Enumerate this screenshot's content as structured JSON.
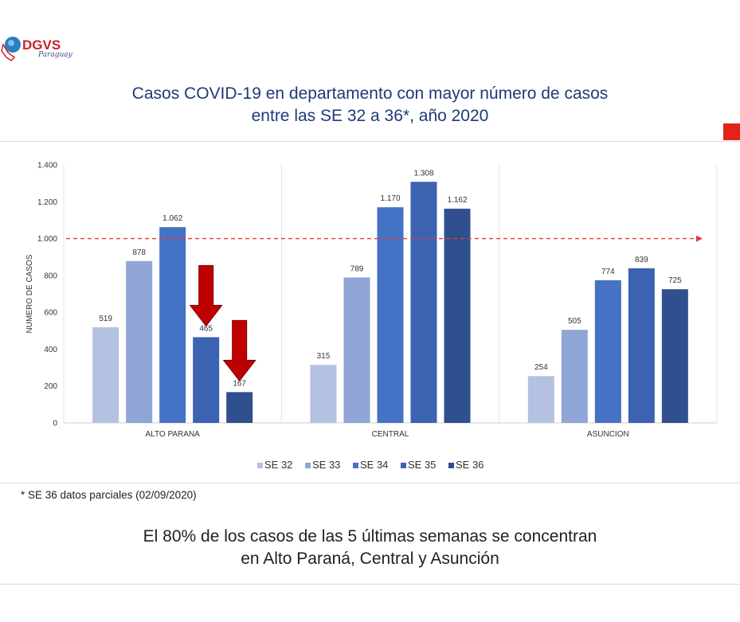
{
  "logo": {
    "text": "DGVS",
    "sub": "Paraguay"
  },
  "title_lines": [
    "Casos COVID-19 en departamento con mayor número de casos",
    "entre las SE 32 a 36*, año 2020"
  ],
  "footnote": "* SE 36 datos parciales (02/09/2020)",
  "conclusion_lines": [
    "El 80% de los casos de las 5 últimas semanas se concentran",
    "en Alto Paraná, Central y Asunción"
  ],
  "chart_data": {
    "type": "bar",
    "title": "Casos COVID-19 en departamento con mayor número de casos entre las SE 32 a 36*, año 2020",
    "xlabel": "",
    "ylabel": "NUMERO DE CASOS",
    "ylim": [
      0,
      1400
    ],
    "yticks": [
      0,
      200,
      400,
      600,
      800,
      1000,
      1200,
      1400
    ],
    "ytick_labels": [
      "0",
      "200",
      "400",
      "600",
      "800",
      "1.000",
      "1.200",
      "1.400"
    ],
    "categories": [
      "ALTO PARANA",
      "CENTRAL",
      "ASUNCION"
    ],
    "series": [
      {
        "name": "SE 32",
        "color": "#b4c1e0",
        "values": [
          519,
          315,
          254
        ],
        "labels": [
          "519",
          "315",
          "254"
        ]
      },
      {
        "name": "SE 33",
        "color": "#8fa5d6",
        "values": [
          878,
          789,
          505
        ],
        "labels": [
          "878",
          "789",
          "505"
        ]
      },
      {
        "name": "SE 34",
        "color": "#4472c4",
        "values": [
          1062,
          1170,
          774
        ],
        "labels": [
          "1.062",
          "1.170",
          "774"
        ]
      },
      {
        "name": "SE 35",
        "color": "#3b63b2",
        "values": [
          465,
          1308,
          839
        ],
        "labels": [
          "465",
          "1.308",
          "839"
        ]
      },
      {
        "name": "SE 36",
        "color": "#2f4f8e",
        "values": [
          167,
          1162,
          725
        ],
        "labels": [
          "167",
          "1.162",
          "725"
        ]
      }
    ],
    "reference_line": {
      "value": 1000,
      "color": "#e53935"
    },
    "annotations": [
      {
        "type": "down-arrow",
        "category": "ALTO PARANA",
        "series": "SE 35"
      },
      {
        "type": "down-arrow",
        "category": "ALTO PARANA",
        "series": "SE 36"
      }
    ],
    "legend": "bottom",
    "grid": "vertical-category-separators"
  }
}
